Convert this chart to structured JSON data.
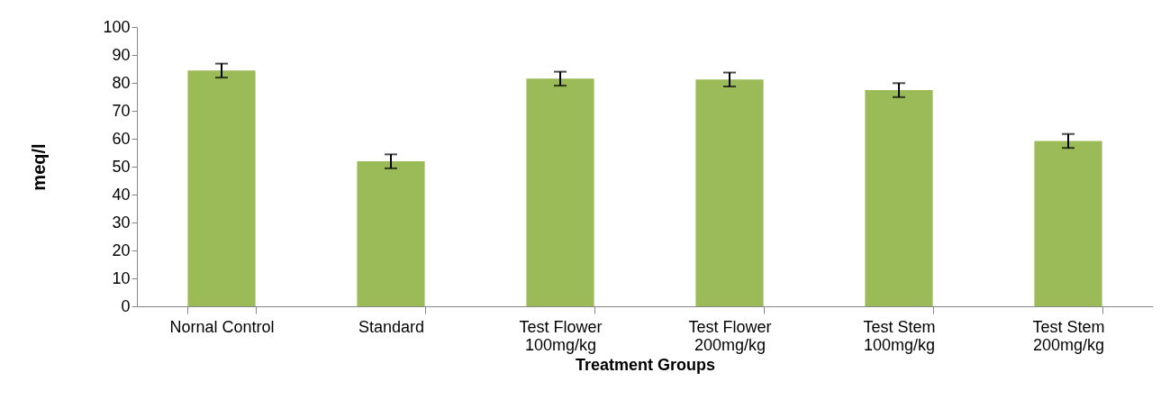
{
  "chart_data": {
    "type": "bar",
    "xlabel": "Treatment Groups",
    "ylabel": "meq/l",
    "categories": [
      "Nornal Control",
      "Standard",
      "Test Flower\n100mg/kg",
      "Test Flower\n200mg/kg",
      "Test Stem\n100mg/kg",
      "Test Stem\n200mg/kg"
    ],
    "values": [
      84.4,
      51.9,
      81.5,
      81.2,
      77.4,
      59.2
    ],
    "errors": [
      2.5,
      2.5,
      2.5,
      2.5,
      2.5,
      2.5
    ],
    "color": "#9bbb59",
    "ylim": [
      0,
      100
    ],
    "yticks": [
      0,
      10,
      20,
      30,
      40,
      50,
      60,
      70,
      80,
      90,
      100
    ],
    "grid": false
  }
}
